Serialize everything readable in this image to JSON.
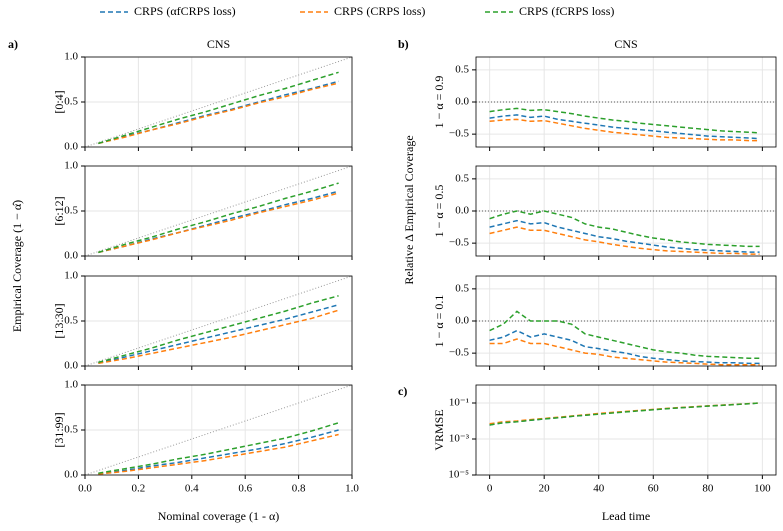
{
  "shared_labels": {
    "left_y": "Empirical Coverage (1 − α̂)",
    "right_y": "Relative Δ Empirical Coverage"
  },
  "chart_data": [
    {
      "type": "line",
      "panel_label": "a)",
      "title": "CNS",
      "ylabel": "[0:4]",
      "diagonal": true,
      "grid": true,
      "x": [
        0.05,
        0.15,
        0.25,
        0.35,
        0.45,
        0.55,
        0.65,
        0.75,
        0.85,
        0.95
      ],
      "xlim": [
        0,
        1
      ],
      "xticks": [
        0,
        0.2,
        0.4,
        0.6,
        0.8,
        1
      ],
      "xtick_labels": false,
      "ylim": [
        0,
        1
      ],
      "yticks": [
        {
          "value": 0,
          "label": "0.0"
        },
        0.5,
        {
          "value": 1,
          "label": "1.0"
        }
      ],
      "series": [
        {
          "name": "CRPS (αfCRPS loss)",
          "color": "#1f77b4",
          "values": [
            0.04,
            0.12,
            0.19,
            0.27,
            0.35,
            0.42,
            0.5,
            0.58,
            0.65,
            0.73
          ]
        },
        {
          "name": "CRPS (CRPS loss)",
          "color": "#ff7f0e",
          "values": [
            0.04,
            0.11,
            0.19,
            0.26,
            0.34,
            0.41,
            0.49,
            0.56,
            0.64,
            0.71
          ]
        },
        {
          "name": "CRPS (fCRPS loss)",
          "color": "#2ca02c",
          "values": [
            0.04,
            0.13,
            0.22,
            0.31,
            0.39,
            0.48,
            0.57,
            0.65,
            0.74,
            0.83
          ]
        }
      ]
    },
    {
      "type": "line",
      "ylabel": "[6:12]",
      "diagonal": true,
      "grid": true,
      "x": [
        0.05,
        0.15,
        0.25,
        0.35,
        0.45,
        0.55,
        0.65,
        0.75,
        0.85,
        0.95
      ],
      "xlim": [
        0,
        1
      ],
      "xticks": [
        0,
        0.2,
        0.4,
        0.6,
        0.8,
        1
      ],
      "xtick_labels": false,
      "ylim": [
        0,
        1
      ],
      "yticks": [
        {
          "value": 0,
          "label": "0.0"
        },
        0.5,
        {
          "value": 1,
          "label": "1.0"
        }
      ],
      "series": [
        {
          "name": "CRPS (αfCRPS loss)",
          "color": "#1f77b4",
          "values": [
            0.04,
            0.11,
            0.19,
            0.26,
            0.34,
            0.42,
            0.49,
            0.57,
            0.64,
            0.72
          ]
        },
        {
          "name": "CRPS (CRPS loss)",
          "color": "#ff7f0e",
          "values": [
            0.04,
            0.11,
            0.18,
            0.26,
            0.33,
            0.4,
            0.48,
            0.55,
            0.62,
            0.7
          ]
        },
        {
          "name": "CRPS (fCRPS loss)",
          "color": "#2ca02c",
          "values": [
            0.04,
            0.13,
            0.21,
            0.3,
            0.38,
            0.47,
            0.55,
            0.64,
            0.72,
            0.81
          ]
        }
      ]
    },
    {
      "type": "line",
      "ylabel": "[13:30]",
      "diagonal": true,
      "grid": true,
      "x": [
        0.05,
        0.15,
        0.25,
        0.35,
        0.45,
        0.55,
        0.65,
        0.75,
        0.85,
        0.95
      ],
      "xlim": [
        0,
        1
      ],
      "xticks": [
        0,
        0.2,
        0.4,
        0.6,
        0.8,
        1
      ],
      "xtick_labels": false,
      "ylim": [
        0,
        1
      ],
      "yticks": [
        {
          "value": 0,
          "label": "0.0"
        },
        0.5,
        {
          "value": 1,
          "label": "1.0"
        }
      ],
      "series": [
        {
          "name": "CRPS (αfCRPS loss)",
          "color": "#1f77b4",
          "values": [
            0.03,
            0.1,
            0.17,
            0.24,
            0.31,
            0.38,
            0.45,
            0.52,
            0.6,
            0.68
          ]
        },
        {
          "name": "CRPS (CRPS loss)",
          "color": "#ff7f0e",
          "values": [
            0.03,
            0.08,
            0.14,
            0.2,
            0.26,
            0.32,
            0.39,
            0.46,
            0.53,
            0.62
          ]
        },
        {
          "name": "CRPS (fCRPS loss)",
          "color": "#2ca02c",
          "values": [
            0.04,
            0.12,
            0.2,
            0.29,
            0.37,
            0.45,
            0.53,
            0.61,
            0.7,
            0.78
          ]
        }
      ]
    },
    {
      "type": "line",
      "ylabel": "[31:99]",
      "xlabel": "Nominal coverage (1 - α)",
      "diagonal": true,
      "grid": true,
      "x": [
        0.05,
        0.15,
        0.25,
        0.35,
        0.45,
        0.55,
        0.65,
        0.75,
        0.85,
        0.95
      ],
      "xlim": [
        0,
        1
      ],
      "xticks": [
        {
          "value": 0,
          "label": "0.0"
        },
        0.2,
        0.4,
        0.6,
        0.8,
        {
          "value": 1,
          "label": "1.0"
        }
      ],
      "xtick_labels": true,
      "ylim": [
        0,
        1
      ],
      "yticks": [
        {
          "value": 0,
          "label": "0.0"
        },
        0.5,
        {
          "value": 1,
          "label": "1.0"
        }
      ],
      "series": [
        {
          "name": "CRPS (αfCRPS loss)",
          "color": "#1f77b4",
          "values": [
            0.01,
            0.05,
            0.1,
            0.14,
            0.19,
            0.24,
            0.29,
            0.35,
            0.42,
            0.5
          ]
        },
        {
          "name": "CRPS (CRPS loss)",
          "color": "#ff7f0e",
          "values": [
            0.01,
            0.04,
            0.08,
            0.12,
            0.16,
            0.21,
            0.26,
            0.31,
            0.38,
            0.45
          ]
        },
        {
          "name": "CRPS (fCRPS loss)",
          "color": "#2ca02c",
          "values": [
            0.02,
            0.07,
            0.12,
            0.18,
            0.23,
            0.29,
            0.35,
            0.41,
            0.49,
            0.58
          ]
        }
      ]
    },
    {
      "type": "line",
      "panel_label": "b)",
      "title": "CNS",
      "ylabel": "1 − α = 0.9",
      "hline": 0,
      "grid": true,
      "x": [
        0,
        5,
        10,
        15,
        20,
        25,
        30,
        35,
        40,
        45,
        50,
        55,
        60,
        65,
        70,
        75,
        80,
        85,
        90,
        95,
        99
      ],
      "xlim": [
        -5,
        105
      ],
      "xticks": [
        0,
        20,
        40,
        60,
        80,
        100
      ],
      "xtick_labels": false,
      "ylim": [
        -0.7,
        0.7
      ],
      "yticks": [
        {
          "value": -0.5,
          "label": "−0.5"
        },
        {
          "value": 0,
          "label": "0.0"
        },
        0.5
      ],
      "series": [
        {
          "name": "CRPS (αfCRPS loss)",
          "color": "#1f77b4",
          "values": [
            -0.25,
            -0.22,
            -0.2,
            -0.24,
            -0.22,
            -0.27,
            -0.3,
            -0.33,
            -0.36,
            -0.39,
            -0.41,
            -0.43,
            -0.45,
            -0.47,
            -0.49,
            -0.51,
            -0.53,
            -0.54,
            -0.55,
            -0.56,
            -0.57
          ]
        },
        {
          "name": "CRPS (CRPS loss)",
          "color": "#ff7f0e",
          "values": [
            -0.3,
            -0.28,
            -0.27,
            -0.3,
            -0.29,
            -0.33,
            -0.37,
            -0.41,
            -0.44,
            -0.47,
            -0.49,
            -0.51,
            -0.53,
            -0.55,
            -0.56,
            -0.57,
            -0.58,
            -0.59,
            -0.59,
            -0.6,
            -0.6
          ]
        },
        {
          "name": "CRPS (fCRPS loss)",
          "color": "#2ca02c",
          "values": [
            -0.15,
            -0.12,
            -0.1,
            -0.13,
            -0.12,
            -0.15,
            -0.18,
            -0.22,
            -0.25,
            -0.28,
            -0.3,
            -0.33,
            -0.35,
            -0.37,
            -0.39,
            -0.41,
            -0.43,
            -0.45,
            -0.46,
            -0.47,
            -0.48
          ]
        }
      ]
    },
    {
      "type": "line",
      "ylabel": "1 − α = 0.5",
      "hline": 0,
      "grid": true,
      "x": [
        0,
        5,
        10,
        15,
        20,
        25,
        30,
        35,
        40,
        45,
        50,
        55,
        60,
        65,
        70,
        75,
        80,
        85,
        90,
        95,
        99
      ],
      "xlim": [
        -5,
        105
      ],
      "xticks": [
        0,
        20,
        40,
        60,
        80,
        100
      ],
      "xtick_labels": false,
      "ylim": [
        -0.7,
        0.7
      ],
      "yticks": [
        {
          "value": -0.5,
          "label": "−0.5"
        },
        {
          "value": 0,
          "label": "0.0"
        },
        0.5
      ],
      "series": [
        {
          "name": "CRPS (αfCRPS loss)",
          "color": "#1f77b4",
          "values": [
            -0.25,
            -0.2,
            -0.15,
            -0.2,
            -0.18,
            -0.25,
            -0.3,
            -0.35,
            -0.4,
            -0.43,
            -0.47,
            -0.5,
            -0.53,
            -0.56,
            -0.58,
            -0.6,
            -0.61,
            -0.62,
            -0.63,
            -0.64,
            -0.64
          ]
        },
        {
          "name": "CRPS (CRPS loss)",
          "color": "#ff7f0e",
          "values": [
            -0.35,
            -0.3,
            -0.25,
            -0.3,
            -0.3,
            -0.35,
            -0.4,
            -0.45,
            -0.48,
            -0.52,
            -0.55,
            -0.58,
            -0.6,
            -0.62,
            -0.63,
            -0.64,
            -0.65,
            -0.66,
            -0.66,
            -0.67,
            -0.67
          ]
        },
        {
          "name": "CRPS (fCRPS loss)",
          "color": "#2ca02c",
          "values": [
            -0.12,
            -0.05,
            0.0,
            -0.05,
            0.0,
            -0.05,
            -0.1,
            -0.2,
            -0.25,
            -0.28,
            -0.33,
            -0.38,
            -0.42,
            -0.45,
            -0.48,
            -0.5,
            -0.52,
            -0.53,
            -0.54,
            -0.55,
            -0.55
          ]
        }
      ]
    },
    {
      "type": "line",
      "ylabel": "1 − α = 0.1",
      "hline": 0,
      "grid": true,
      "x": [
        0,
        5,
        10,
        15,
        20,
        25,
        30,
        35,
        40,
        45,
        50,
        55,
        60,
        65,
        70,
        75,
        80,
        85,
        90,
        95,
        99
      ],
      "xlim": [
        -5,
        105
      ],
      "xticks": [
        0,
        20,
        40,
        60,
        80,
        100
      ],
      "xtick_labels": false,
      "ylim": [
        -0.7,
        0.7
      ],
      "yticks": [
        {
          "value": -0.5,
          "label": "−0.5"
        },
        {
          "value": 0,
          "label": "0.0"
        },
        0.5
      ],
      "series": [
        {
          "name": "CRPS (αfCRPS loss)",
          "color": "#1f77b4",
          "values": [
            -0.3,
            -0.25,
            -0.15,
            -0.25,
            -0.2,
            -0.25,
            -0.3,
            -0.4,
            -0.43,
            -0.47,
            -0.5,
            -0.55,
            -0.58,
            -0.6,
            -0.62,
            -0.63,
            -0.64,
            -0.65,
            -0.65,
            -0.66,
            -0.66
          ]
        },
        {
          "name": "CRPS (CRPS loss)",
          "color": "#ff7f0e",
          "values": [
            -0.35,
            -0.35,
            -0.28,
            -0.35,
            -0.35,
            -0.4,
            -0.45,
            -0.5,
            -0.52,
            -0.56,
            -0.58,
            -0.6,
            -0.62,
            -0.64,
            -0.65,
            -0.66,
            -0.67,
            -0.68,
            -0.68,
            -0.68,
            -0.68
          ]
        },
        {
          "name": "CRPS (fCRPS loss)",
          "color": "#2ca02c",
          "values": [
            -0.15,
            -0.05,
            0.15,
            0.0,
            0.0,
            0.0,
            -0.05,
            -0.2,
            -0.25,
            -0.3,
            -0.35,
            -0.4,
            -0.45,
            -0.48,
            -0.5,
            -0.53,
            -0.55,
            -0.56,
            -0.57,
            -0.58,
            -0.58
          ]
        }
      ]
    },
    {
      "type": "line",
      "panel_label": "c)",
      "ylabel": "VRMSE",
      "xlabel": "Lead time",
      "yscale": "log",
      "grid": true,
      "x": [
        0,
        5,
        10,
        15,
        20,
        25,
        30,
        35,
        40,
        45,
        50,
        55,
        60,
        65,
        70,
        75,
        80,
        85,
        90,
        95,
        99
      ],
      "xlim": [
        -5,
        105
      ],
      "xticks": [
        0,
        20,
        40,
        60,
        80,
        100
      ],
      "xtick_labels": true,
      "ylim": [
        1e-05,
        1
      ],
      "yticks": [
        {
          "value": 1e-05,
          "label": "10⁻⁵"
        },
        {
          "value": 0.001,
          "label": "10⁻³"
        },
        {
          "value": 0.1,
          "label": "10⁻¹"
        }
      ],
      "series": [
        {
          "name": "CRPS (αfCRPS loss)",
          "color": "#1f77b4",
          "values": [
            0.006,
            0.008,
            0.009,
            0.011,
            0.013,
            0.015,
            0.018,
            0.021,
            0.025,
            0.029,
            0.033,
            0.038,
            0.043,
            0.049,
            0.055,
            0.061,
            0.068,
            0.075,
            0.083,
            0.092,
            0.1
          ]
        },
        {
          "name": "CRPS (CRPS loss)",
          "color": "#ff7f0e",
          "values": [
            0.007,
            0.009,
            0.01,
            0.012,
            0.014,
            0.016,
            0.019,
            0.022,
            0.026,
            0.03,
            0.034,
            0.039,
            0.044,
            0.05,
            0.056,
            0.062,
            0.069,
            0.076,
            0.084,
            0.093,
            0.1
          ]
        },
        {
          "name": "CRPS (fCRPS loss)",
          "color": "#2ca02c",
          "values": [
            0.006,
            0.008,
            0.009,
            0.011,
            0.013,
            0.015,
            0.018,
            0.021,
            0.024,
            0.028,
            0.032,
            0.037,
            0.042,
            0.048,
            0.054,
            0.06,
            0.067,
            0.074,
            0.082,
            0.091,
            0.1
          ]
        }
      ]
    }
  ]
}
